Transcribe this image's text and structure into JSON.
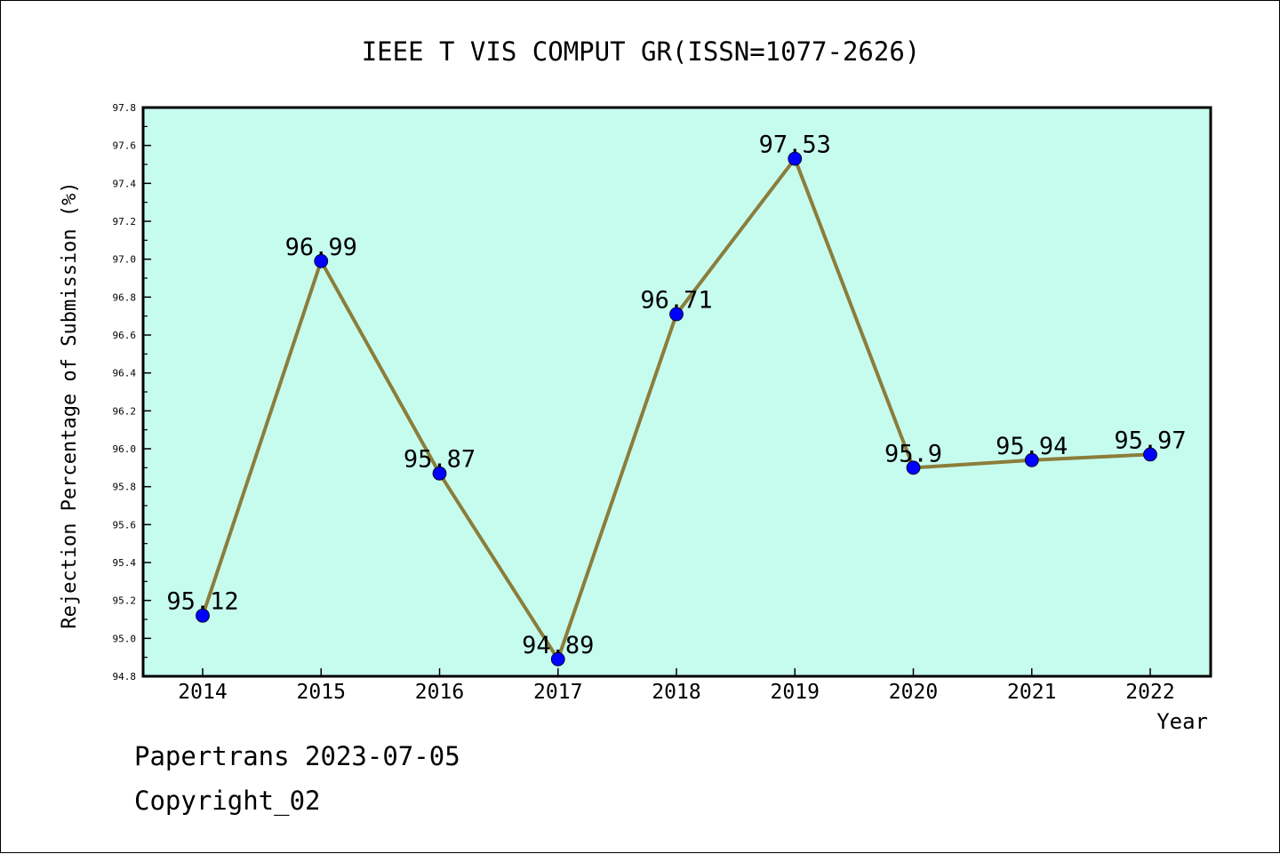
{
  "chart_data": {
    "type": "line",
    "title": "IEEE T VIS COMPUT GR(ISSN=1077-2626)",
    "xlabel": "Year",
    "ylabel": "Rejection Percentage of Submission (%)",
    "categories": [
      "2014",
      "2015",
      "2016",
      "2017",
      "2018",
      "2019",
      "2020",
      "2021",
      "2022"
    ],
    "series": [
      {
        "values": [
          95.12,
          96.99,
          95.87,
          94.89,
          96.71,
          97.53,
          95.9,
          95.94,
          95.97
        ],
        "labels": [
          "95.12",
          "96.99",
          "95.87",
          "94.89",
          "96.71",
          "97.53",
          "95.9",
          "95.94",
          "95.97"
        ]
      }
    ],
    "ylim": [
      94.8,
      97.8
    ],
    "yticks": [
      "94.8",
      "95.0",
      "95.2",
      "95.4",
      "95.6",
      "95.8",
      "96.0",
      "96.2",
      "96.4",
      "96.6",
      "96.8",
      "97.0",
      "97.2",
      "97.4",
      "97.6",
      "97.8"
    ],
    "grid": false,
    "colors": {
      "plot_background": "#c6fcee",
      "line": "#8b7d3a",
      "marker": "#0000ff"
    }
  },
  "footer": {
    "line1": "Papertrans 2023-07-05",
    "line2": "Copyright_02"
  }
}
